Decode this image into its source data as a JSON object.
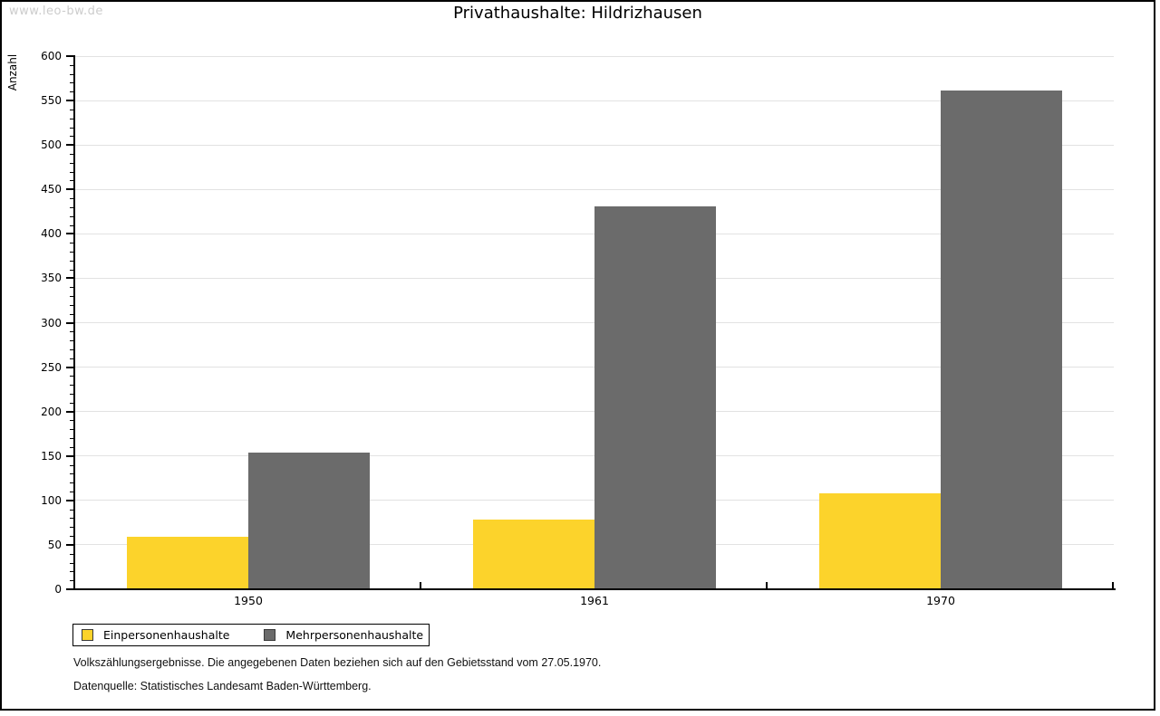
{
  "watermark": "www.leo-bw.de",
  "title": "Privathaushalte: Hildrizhausen",
  "chart_data": {
    "type": "bar",
    "title": "Privathaushalte: Hildrizhausen",
    "categories": [
      "1950",
      "1961",
      "1970"
    ],
    "series": [
      {
        "name": "Einpersonenhaushalte",
        "color": "#fcd32b",
        "values": [
          58,
          77,
          107
        ]
      },
      {
        "name": "Mehrpersonenhaushalte",
        "color": "#6b6b6b",
        "values": [
          153,
          430,
          560
        ]
      }
    ],
    "xlabel": "",
    "ylabel": "Anzahl",
    "ylim": [
      0,
      600
    ],
    "yticks": [
      0,
      50,
      100,
      150,
      200,
      250,
      300,
      350,
      400,
      450,
      500,
      550,
      600
    ],
    "ytick_minor_step": 10,
    "grid": true,
    "legend_position": "bottom-left"
  },
  "footnotes": [
    "Volkszählungsergebnisse. Die angegebenen Daten beziehen sich auf den Gebietsstand vom 27.05.1970.",
    "Datenquelle: Statistisches Landesamt Baden-Württemberg."
  ],
  "colors": {
    "bar_einpersonen": "#fcd32b",
    "bar_mehrpersonen": "#6b6b6b",
    "gridline": "#e2e2e2",
    "watermark": "#cccccc",
    "shadow": "#808080",
    "border": "#000000",
    "text": "#000000"
  }
}
